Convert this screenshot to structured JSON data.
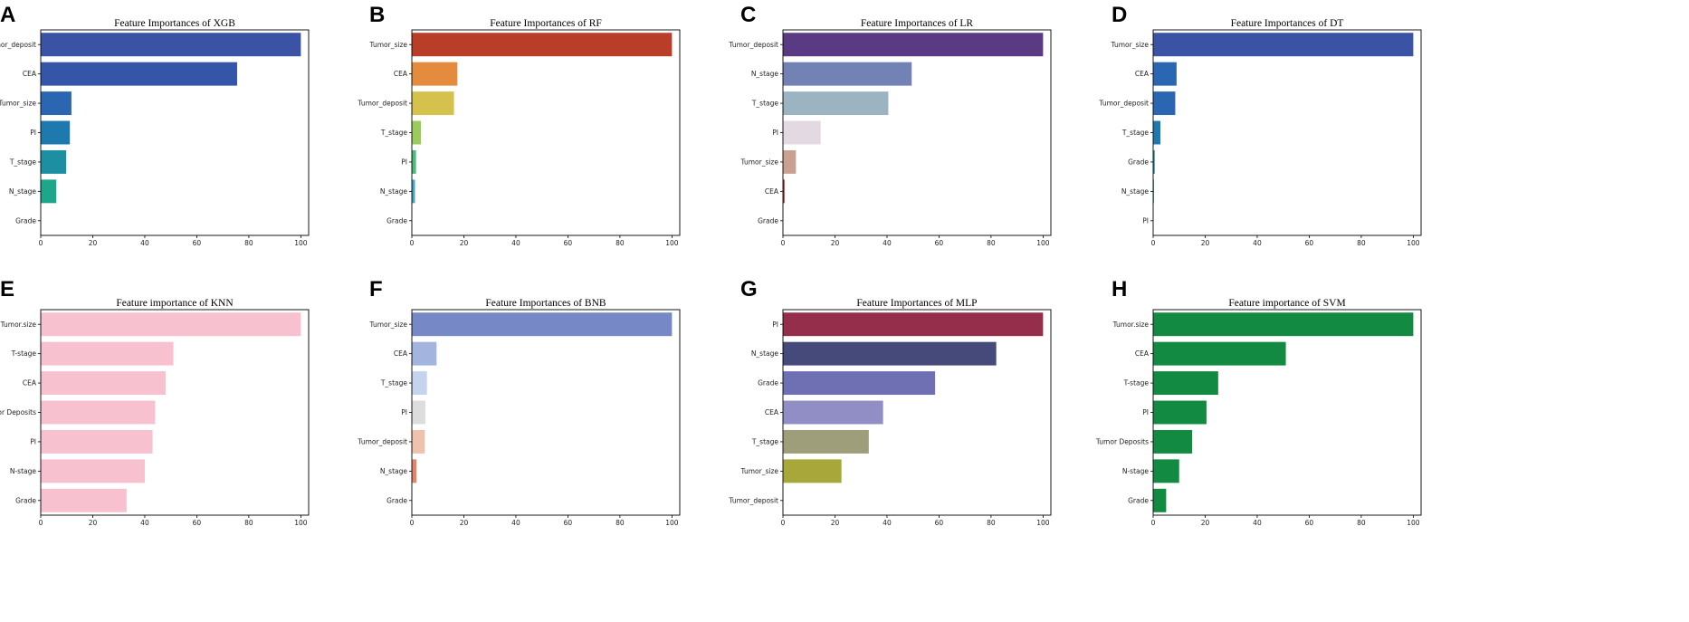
{
  "chart_data": [
    {
      "panel": "A",
      "type": "bar",
      "orientation": "horizontal",
      "title": "Feature Importances of XGB",
      "categories": [
        "Tumor_deposit",
        "CEA",
        "Tumor_size",
        "PI",
        "T_stage",
        "N_stage",
        "Grade"
      ],
      "values": [
        100,
        75.5,
        11.8,
        11.2,
        9.8,
        6.0,
        0
      ],
      "colors": [
        "#3a53a4",
        "#3556a8",
        "#2b66b3",
        "#1e7aae",
        "#1d8fa2",
        "#1ea68a",
        "#1ea68a"
      ],
      "xlim": [
        0,
        103
      ],
      "xticks": [
        "0",
        "20",
        "40",
        "60",
        "80",
        "100"
      ],
      "xlabel": "",
      "ylabel": ""
    },
    {
      "panel": "B",
      "type": "bar",
      "orientation": "horizontal",
      "title": "Feature Importances of RF",
      "categories": [
        "Tumor_size",
        "CEA",
        "Tumor_deposit",
        "T_stage",
        "PI",
        "N_stage",
        "Grade"
      ],
      "values": [
        100,
        17.5,
        16.2,
        3.5,
        1.6,
        1.2,
        0
      ],
      "colors": [
        "#b93e2a",
        "#e58b3d",
        "#d5c24c",
        "#9bcb5a",
        "#4dbb7a",
        "#46a8c6",
        "#46a8c6"
      ],
      "xlim": [
        0,
        103
      ],
      "xticks": [
        "0",
        "20",
        "40",
        "60",
        "80",
        "100"
      ],
      "xlabel": "",
      "ylabel": ""
    },
    {
      "panel": "C",
      "type": "bar",
      "orientation": "horizontal",
      "title": "Feature Importances of LR",
      "categories": [
        "Tumor_deposit",
        "N_stage",
        "T_stage",
        "PI",
        "Tumor_size",
        "CEA",
        "Grade"
      ],
      "values": [
        100,
        49.5,
        40.5,
        14.5,
        5.0,
        0.6,
        0
      ],
      "colors": [
        "#5b3a84",
        "#7382b4",
        "#9cb3c2",
        "#e2d9e2",
        "#c9a190",
        "#9e2a2f",
        "#9e2a2f"
      ],
      "xlim": [
        0,
        103
      ],
      "xticks": [
        "0",
        "20",
        "40",
        "60",
        "80",
        "100"
      ],
      "xlabel": "",
      "ylabel": ""
    },
    {
      "panel": "D",
      "type": "bar",
      "orientation": "horizontal",
      "title": "Feature Importances of DT",
      "categories": [
        "Tumor_size",
        "CEA",
        "Tumor_deposit",
        "T_stage",
        "Grade",
        "N_stage",
        "PI"
      ],
      "values": [
        100,
        9.0,
        8.5,
        2.8,
        0.6,
        0.3,
        0
      ],
      "colors": [
        "#3a53a4",
        "#2b66b3",
        "#2b66b3",
        "#1e7aae",
        "#1d8fa2",
        "#1ea68a",
        "#1ea68a"
      ],
      "xlim": [
        0,
        103
      ],
      "xticks": [
        "0",
        "20",
        "40",
        "60",
        "80",
        "100"
      ],
      "xlabel": "",
      "ylabel": ""
    },
    {
      "panel": "E",
      "type": "bar",
      "orientation": "horizontal",
      "title": "Feature importance of KNN",
      "categories": [
        "Tumor.size",
        "T-stage",
        "CEA",
        "Tumor Deposits",
        "PI",
        "N-stage",
        "Grade"
      ],
      "values": [
        100,
        51,
        48,
        44,
        43,
        40,
        33
      ],
      "colors": [
        "#f8c1cf",
        "#f8c1cf",
        "#f8c1cf",
        "#f8c1cf",
        "#f8c1cf",
        "#f8c1cf",
        "#f8c1cf"
      ],
      "xlim": [
        0,
        103
      ],
      "xticks": [
        "0",
        "20",
        "40",
        "60",
        "80",
        "100"
      ],
      "xlabel": "",
      "ylabel": ""
    },
    {
      "panel": "F",
      "type": "bar",
      "orientation": "horizontal",
      "title": "Feature Importances of BNB",
      "categories": [
        "Tumor_size",
        "CEA",
        "T_stage",
        "PI",
        "Tumor_deposit",
        "N_stage",
        "Grade"
      ],
      "values": [
        100,
        9.5,
        5.8,
        5.2,
        5.0,
        1.8,
        0
      ],
      "colors": [
        "#7689c6",
        "#a3b4de",
        "#c5d4ec",
        "#dddddd",
        "#eec3ad",
        "#e0876a",
        "#e0876a"
      ],
      "xlim": [
        0,
        103
      ],
      "xticks": [
        "0",
        "20",
        "40",
        "60",
        "80",
        "100"
      ],
      "xlabel": "",
      "ylabel": ""
    },
    {
      "panel": "G",
      "type": "bar",
      "orientation": "horizontal",
      "title": "Feature Importances of MLP",
      "categories": [
        "PI",
        "N_stage",
        "Grade",
        "CEA",
        "T_stage",
        "Tumor_size",
        "Tumor_deposit"
      ],
      "values": [
        100,
        82,
        58.5,
        38.5,
        33,
        22.5,
        0
      ],
      "colors": [
        "#952e4a",
        "#454a7a",
        "#6f70b4",
        "#908ec4",
        "#9e9e7b",
        "#a8a83a",
        "#a8a83a"
      ],
      "xlim": [
        0,
        103
      ],
      "xticks": [
        "0",
        "20",
        "40",
        "60",
        "80",
        "100"
      ],
      "xlabel": "",
      "ylabel": ""
    },
    {
      "panel": "H",
      "type": "bar",
      "orientation": "horizontal",
      "title": "Feature importance of SVM",
      "categories": [
        "Tumor.size",
        "CEA",
        "T-stage",
        "PI",
        "Tumor Deposits",
        "N-stage",
        "Grade"
      ],
      "values": [
        100,
        51,
        25,
        20.5,
        15,
        10,
        5
      ],
      "colors": [
        "#138a41",
        "#138a41",
        "#138a41",
        "#138a41",
        "#138a41",
        "#138a41",
        "#138a41"
      ],
      "xlim": [
        0,
        103
      ],
      "xticks": [
        "0",
        "20",
        "40",
        "60",
        "80",
        "100"
      ],
      "xlabel": "",
      "ylabel": ""
    }
  ]
}
